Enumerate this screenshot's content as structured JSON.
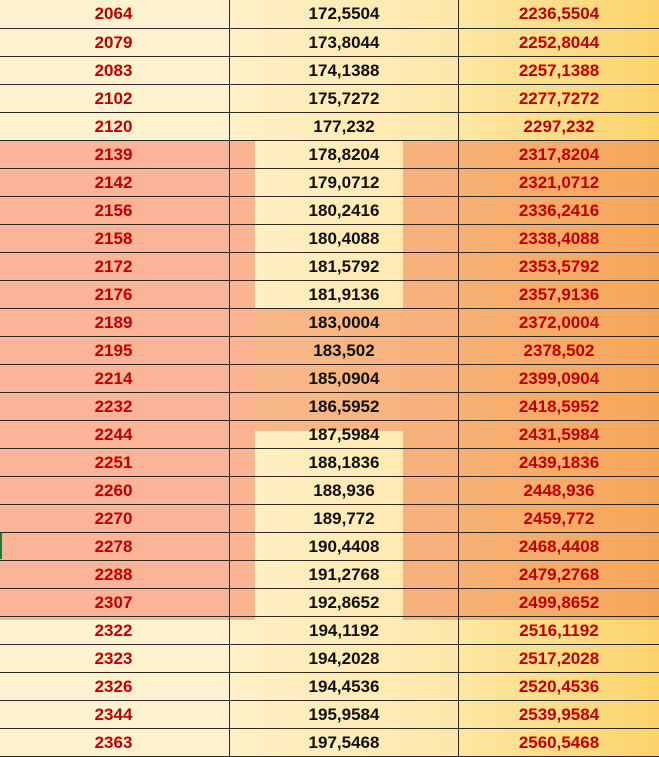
{
  "table": {
    "rows": [
      [
        "2064",
        "172,5504",
        "2236,5504"
      ],
      [
        "2079",
        "173,8044",
        "2252,8044"
      ],
      [
        "2083",
        "174,1388",
        "2257,1388"
      ],
      [
        "2102",
        "175,7272",
        "2277,7272"
      ],
      [
        "2120",
        "177,232",
        "2297,232"
      ],
      [
        "2139",
        "178,8204",
        "2317,8204"
      ],
      [
        "2142",
        "179,0712",
        "2321,0712"
      ],
      [
        "2156",
        "180,2416",
        "2336,2416"
      ],
      [
        "2158",
        "180,4088",
        "2338,4088"
      ],
      [
        "2172",
        "181,5792",
        "2353,5792"
      ],
      [
        "2176",
        "181,9136",
        "2357,9136"
      ],
      [
        "2189",
        "183,0004",
        "2372,0004"
      ],
      [
        "2195",
        "183,502",
        "2378,502"
      ],
      [
        "2214",
        "185,0904",
        "2399,0904"
      ],
      [
        "2232",
        "186,5952",
        "2418,5952"
      ],
      [
        "2244",
        "187,5984",
        "2431,5984"
      ],
      [
        "2251",
        "188,1836",
        "2439,1836"
      ],
      [
        "2260",
        "188,936",
        "2448,936"
      ],
      [
        "2270",
        "189,772",
        "2459,772"
      ],
      [
        "2278",
        "190,4408",
        "2468,4408"
      ],
      [
        "2288",
        "191,2768",
        "2479,2768"
      ],
      [
        "2307",
        "192,8652",
        "2499,8652"
      ],
      [
        "2322",
        "194,1192",
        "2516,1192"
      ],
      [
        "2323",
        "194,2028",
        "2517,2028"
      ],
      [
        "2326",
        "194,4536",
        "2520,4536"
      ],
      [
        "2344",
        "195,9584",
        "2539,9584"
      ],
      [
        "2363",
        "197,5468",
        "2560,5468"
      ]
    ]
  },
  "colors": {
    "value_red": "#c00000",
    "value_black": "#111111",
    "highlight": "#f48a64",
    "column_a_fill": "#fff2d0",
    "column_c_fill": "#fcd36c"
  }
}
